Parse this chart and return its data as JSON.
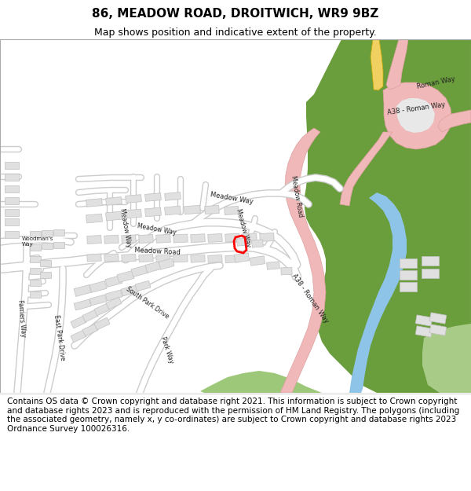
{
  "title_line1": "86, MEADOW ROAD, DROITWICH, WR9 9BZ",
  "title_line2": "Map shows position and indicative extent of the property.",
  "footer_text": "Contains OS data © Crown copyright and database right 2021. This information is subject to Crown copyright and database rights 2023 and is reproduced with the permission of HM Land Registry. The polygons (including the associated geometry, namely x, y co-ordinates) are subject to Crown copyright and database rights 2023 Ordnance Survey 100026316.",
  "map_bg": "#f2f2f2",
  "road_color": "#ffffff",
  "road_outline": "#cccccc",
  "green_color": "#6a9e3c",
  "green_light": "#b8d898",
  "pink_road": "#f0b8b8",
  "pink_road_outline": "#dda0a0",
  "blue_water": "#8ec4e8",
  "yellow_road": "#f0d060",
  "building_fill": "#e0e0e0",
  "building_outline": "#c0c0c0",
  "plot_color": "#ff0000",
  "title_fontsize": 11,
  "subtitle_fontsize": 9,
  "footer_fontsize": 7.5
}
